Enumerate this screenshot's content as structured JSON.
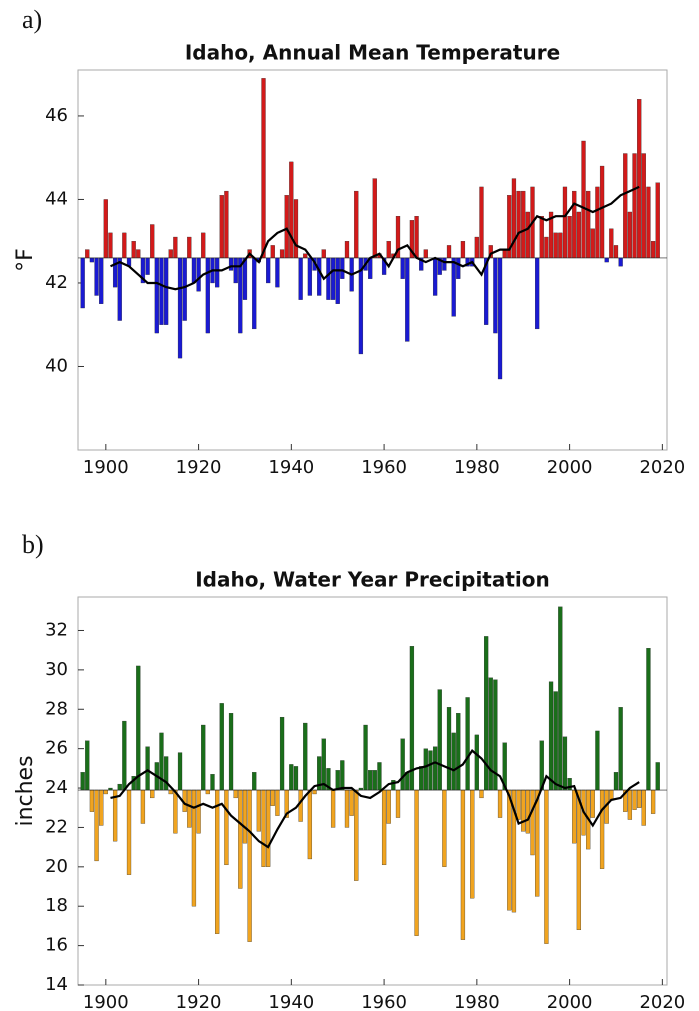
{
  "chart_data": [
    {
      "type": "bar",
      "panel_label": "a)",
      "title": "Idaho, Annual Mean Temperature",
      "ylabel": "°F",
      "xlim": [
        1894,
        2021
      ],
      "xticks": [
        1900,
        1920,
        1940,
        1960,
        1980,
        2000,
        2020
      ],
      "ylim": [
        38,
        47.1
      ],
      "yticks": [
        40,
        42,
        44,
        46
      ],
      "baseline": 42.6,
      "color_above": "#d21a1a",
      "color_below": "#1a1ad2",
      "x": [
        1895,
        1896,
        1897,
        1898,
        1899,
        1900,
        1901,
        1902,
        1903,
        1904,
        1905,
        1906,
        1907,
        1908,
        1909,
        1910,
        1911,
        1912,
        1913,
        1914,
        1915,
        1916,
        1917,
        1918,
        1919,
        1920,
        1921,
        1922,
        1923,
        1924,
        1925,
        1926,
        1927,
        1928,
        1929,
        1930,
        1931,
        1932,
        1933,
        1934,
        1935,
        1936,
        1937,
        1938,
        1939,
        1940,
        1941,
        1942,
        1943,
        1944,
        1945,
        1946,
        1947,
        1948,
        1949,
        1950,
        1951,
        1952,
        1953,
        1954,
        1955,
        1956,
        1957,
        1958,
        1959,
        1960,
        1961,
        1962,
        1963,
        1964,
        1965,
        1966,
        1967,
        1968,
        1969,
        1970,
        1971,
        1972,
        1973,
        1974,
        1975,
        1976,
        1977,
        1978,
        1979,
        1980,
        1981,
        1982,
        1983,
        1984,
        1985,
        1986,
        1987,
        1988,
        1989,
        1990,
        1991,
        1992,
        1993,
        1994,
        1995,
        1996,
        1997,
        1998,
        1999,
        2000,
        2001,
        2002,
        2003,
        2004,
        2005,
        2006,
        2007,
        2008,
        2009,
        2010,
        2011,
        2012,
        2013,
        2014,
        2015,
        2016,
        2017,
        2018,
        2019
      ],
      "values": [
        41.4,
        42.8,
        42.5,
        41.7,
        41.5,
        44.0,
        43.2,
        41.9,
        41.1,
        43.2,
        42.4,
        43.0,
        42.8,
        42.0,
        42.2,
        43.4,
        40.8,
        41.0,
        41.0,
        42.8,
        43.1,
        40.2,
        41.1,
        43.1,
        42.0,
        41.8,
        43.2,
        40.8,
        42.0,
        41.9,
        44.1,
        44.2,
        42.3,
        42.0,
        40.8,
        41.6,
        42.8,
        40.9,
        42.5,
        46.9,
        42.0,
        42.9,
        41.9,
        42.8,
        44.1,
        44.9,
        44.0,
        41.6,
        42.7,
        41.7,
        42.3,
        41.7,
        42.8,
        41.6,
        41.6,
        41.5,
        42.1,
        43.0,
        41.8,
        44.2,
        40.3,
        42.3,
        42.1,
        44.5,
        42.7,
        42.2,
        43.0,
        42.7,
        43.6,
        42.1,
        40.6,
        43.5,
        43.6,
        42.3,
        42.8,
        42.6,
        41.7,
        42.2,
        42.3,
        42.9,
        41.2,
        42.1,
        43.0,
        42.4,
        42.4,
        43.1,
        44.3,
        41.0,
        42.9,
        40.8,
        39.7,
        42.8,
        44.1,
        44.5,
        44.2,
        44.2,
        43.7,
        44.3,
        40.9,
        43.6,
        43.1,
        43.7,
        43.2,
        43.2,
        44.3,
        43.6,
        44.2,
        43.7,
        45.4,
        44.2,
        43.3,
        44.3,
        44.8,
        42.5,
        43.3,
        42.9,
        42.4,
        45.1,
        43.7,
        45.1,
        46.4,
        45.1,
        44.3,
        43.0,
        44.4
      ],
      "line": {
        "color": "#000000",
        "x": [
          1901,
          1903,
          1905,
          1907,
          1909,
          1911,
          1913,
          1915,
          1917,
          1919,
          1921,
          1923,
          1925,
          1927,
          1929,
          1931,
          1933,
          1935,
          1937,
          1939,
          1941,
          1943,
          1945,
          1947,
          1949,
          1951,
          1953,
          1955,
          1957,
          1959,
          1961,
          1963,
          1965,
          1967,
          1969,
          1971,
          1973,
          1975,
          1977,
          1979,
          1981,
          1983,
          1985,
          1987,
          1989,
          1991,
          1993,
          1995,
          1997,
          1999,
          2001,
          2003,
          2005,
          2007,
          2009,
          2011,
          2013,
          2015
        ],
        "values": [
          42.4,
          42.5,
          42.4,
          42.2,
          42.0,
          42.0,
          41.9,
          41.85,
          41.9,
          42.0,
          42.2,
          42.3,
          42.3,
          42.4,
          42.4,
          42.7,
          42.5,
          43.0,
          43.2,
          43.3,
          42.9,
          42.8,
          42.5,
          42.1,
          42.3,
          42.3,
          42.2,
          42.3,
          42.6,
          42.7,
          42.4,
          42.8,
          42.9,
          42.6,
          42.5,
          42.6,
          42.5,
          42.5,
          42.4,
          42.5,
          42.2,
          42.7,
          42.8,
          42.8,
          43.2,
          43.3,
          43.6,
          43.5,
          43.6,
          43.6,
          43.9,
          43.8,
          43.7,
          43.8,
          43.9,
          44.1,
          44.2,
          44.3
        ]
      }
    },
    {
      "type": "bar",
      "panel_label": "b)",
      "title": "Idaho, Water Year Precipitation",
      "ylabel": "inches",
      "xlim": [
        1894,
        2021
      ],
      "xticks": [
        1900,
        1920,
        1940,
        1960,
        1980,
        2000,
        2020
      ],
      "ylim": [
        14,
        33.7
      ],
      "yticks": [
        14,
        16,
        18,
        20,
        22,
        24,
        26,
        28,
        30,
        32
      ],
      "baseline": 23.9,
      "color_above": "#1a6e1a",
      "color_below": "#f0a420",
      "x": [
        1895,
        1896,
        1897,
        1898,
        1899,
        1900,
        1901,
        1902,
        1903,
        1904,
        1905,
        1906,
        1907,
        1908,
        1909,
        1910,
        1911,
        1912,
        1913,
        1914,
        1915,
        1916,
        1917,
        1918,
        1919,
        1920,
        1921,
        1922,
        1923,
        1924,
        1925,
        1926,
        1927,
        1928,
        1929,
        1930,
        1931,
        1932,
        1933,
        1934,
        1935,
        1936,
        1937,
        1938,
        1939,
        1940,
        1941,
        1942,
        1943,
        1944,
        1945,
        1946,
        1947,
        1948,
        1949,
        1950,
        1951,
        1952,
        1953,
        1954,
        1955,
        1956,
        1957,
        1958,
        1959,
        1960,
        1961,
        1962,
        1963,
        1964,
        1965,
        1966,
        1967,
        1968,
        1969,
        1970,
        1971,
        1972,
        1973,
        1974,
        1975,
        1976,
        1977,
        1978,
        1979,
        1980,
        1981,
        1982,
        1983,
        1984,
        1985,
        1986,
        1987,
        1988,
        1989,
        1990,
        1991,
        1992,
        1993,
        1994,
        1995,
        1996,
        1997,
        1998,
        1999,
        2000,
        2001,
        2002,
        2003,
        2004,
        2005,
        2006,
        2007,
        2008,
        2009,
        2010,
        2011,
        2012,
        2013,
        2014,
        2015,
        2016,
        2017,
        2018,
        2019
      ],
      "values": [
        24.8,
        26.4,
        22.8,
        20.3,
        22.1,
        23.7,
        24.0,
        21.3,
        24.2,
        27.4,
        19.6,
        24.6,
        30.2,
        22.2,
        26.1,
        23.5,
        25.3,
        26.8,
        25.6,
        23.7,
        21.7,
        25.8,
        22.8,
        22.0,
        18.0,
        21.7,
        27.2,
        23.7,
        24.7,
        16.6,
        28.3,
        20.1,
        27.8,
        23.5,
        18.9,
        21.2,
        16.2,
        24.8,
        21.8,
        20.0,
        20.0,
        23.1,
        22.6,
        27.6,
        22.5,
        25.2,
        25.1,
        22.3,
        27.3,
        20.4,
        23.7,
        25.6,
        26.5,
        25.0,
        22.0,
        24.9,
        25.4,
        22.0,
        22.6,
        19.3,
        24.0,
        27.2,
        24.9,
        24.9,
        25.3,
        20.1,
        22.2,
        24.4,
        22.5,
        26.5,
        24.8,
        31.2,
        16.5,
        25.1,
        26.0,
        25.9,
        26.1,
        29.0,
        20.0,
        28.1,
        26.8,
        27.8,
        16.3,
        28.6,
        18.4,
        26.7,
        23.5,
        31.7,
        29.6,
        29.5,
        22.5,
        26.3,
        17.8,
        17.7,
        22.4,
        21.8,
        21.7,
        20.6,
        18.5,
        26.4,
        16.1,
        29.4,
        28.9,
        33.2,
        26.6,
        24.5,
        21.2,
        16.8,
        21.6,
        20.9,
        22.5,
        26.9,
        19.9,
        22.2,
        23.4,
        24.8,
        28.1,
        22.8,
        22.4,
        22.9,
        23.0,
        22.1,
        31.1,
        22.7,
        25.3
      ],
      "line": {
        "color": "#000000",
        "x": [
          1901,
          1903,
          1905,
          1907,
          1909,
          1911,
          1913,
          1915,
          1917,
          1919,
          1921,
          1923,
          1925,
          1927,
          1929,
          1931,
          1933,
          1935,
          1937,
          1939,
          1941,
          1943,
          1945,
          1947,
          1949,
          1951,
          1953,
          1955,
          1957,
          1959,
          1961,
          1963,
          1965,
          1967,
          1969,
          1971,
          1973,
          1975,
          1977,
          1979,
          1981,
          1983,
          1985,
          1987,
          1989,
          1991,
          1993,
          1995,
          1997,
          1999,
          2001,
          2003,
          2005,
          2007,
          2009,
          2011,
          2013,
          2015
        ],
        "values": [
          23.5,
          23.6,
          24.2,
          24.6,
          24.9,
          24.6,
          24.3,
          23.8,
          23.2,
          23.0,
          23.2,
          23.0,
          23.2,
          22.6,
          22.2,
          21.8,
          21.3,
          21.0,
          21.9,
          22.7,
          23.0,
          23.6,
          24.1,
          24.2,
          23.9,
          24.0,
          24.0,
          23.6,
          23.5,
          23.8,
          24.2,
          24.3,
          24.8,
          25.0,
          25.1,
          25.3,
          25.1,
          24.9,
          25.2,
          25.9,
          25.5,
          24.9,
          24.6,
          23.6,
          22.2,
          22.4,
          23.4,
          24.6,
          24.2,
          24.0,
          24.1,
          22.8,
          22.1,
          22.9,
          23.4,
          23.5,
          24.0,
          24.3
        ]
      }
    }
  ]
}
